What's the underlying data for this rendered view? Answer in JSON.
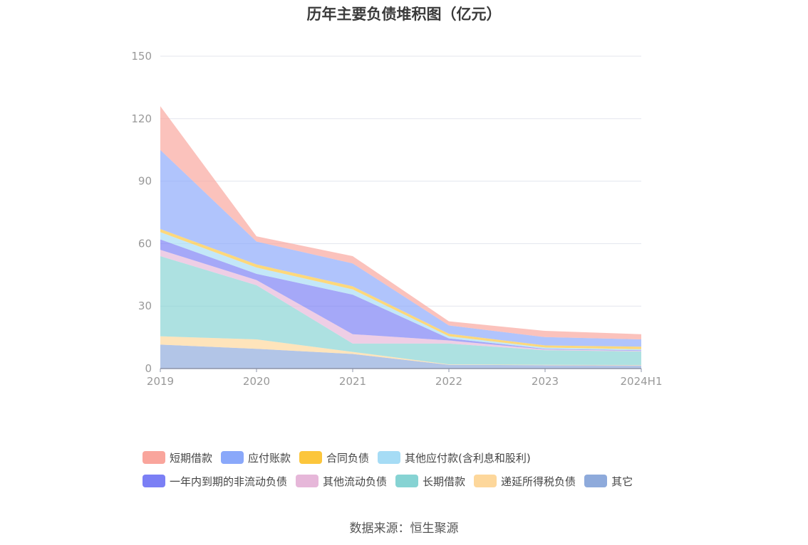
{
  "chart_data": {
    "type": "area",
    "stacked": true,
    "title": "历年主要负债堆积图（亿元）",
    "categories": [
      "2019",
      "2020",
      "2021",
      "2022",
      "2023",
      "2024H1"
    ],
    "ylim": [
      0,
      150
    ],
    "yticks": [
      "0",
      "30",
      "60",
      "90",
      "120",
      "150"
    ],
    "grid": true,
    "legend_position": "bottom",
    "series": [
      {
        "name": "其它",
        "color": "#8eaadb",
        "values": [
          11.5,
          9.5,
          7.0,
          1.8,
          1.6,
          1.5
        ]
      },
      {
        "name": "递延所得税负债",
        "color": "#fdd79b",
        "values": [
          4.0,
          4.5,
          1.0,
          0.2,
          0.2,
          0.2
        ]
      },
      {
        "name": "长期借款",
        "color": "#86d3d3",
        "values": [
          38.5,
          26.0,
          4.0,
          10.0,
          7.0,
          6.5
        ]
      },
      {
        "name": "其他流动负债",
        "color": "#e6b7d9",
        "values": [
          3.0,
          2.5,
          4.5,
          1.5,
          0.4,
          0.3
        ]
      },
      {
        "name": "一年内到期的非流动负债",
        "color": "#7b7ff5",
        "values": [
          5.0,
          3.0,
          19.0,
          1.0,
          0.3,
          0.3
        ]
      },
      {
        "name": "其他应付款(含利息和股利)",
        "color": "#a6dcf5",
        "values": [
          3.5,
          3.0,
          2.5,
          1.0,
          0.6,
          0.5
        ]
      },
      {
        "name": "合同负债",
        "color": "#fcc63c",
        "values": [
          1.5,
          1.5,
          1.5,
          1.2,
          1.0,
          1.2
        ]
      },
      {
        "name": "应付账款",
        "color": "#8aa8fa",
        "values": [
          38.0,
          11.0,
          11.0,
          4.0,
          4.0,
          3.5
        ]
      },
      {
        "name": "短期借款",
        "color": "#f9a59c",
        "values": [
          21.0,
          2.5,
          3.5,
          2.0,
          3.0,
          2.5
        ]
      }
    ]
  },
  "legend": {
    "rows": [
      [
        {
          "label": "短期借款",
          "color": "#f9a59c"
        },
        {
          "label": "应付账款",
          "color": "#8aa8fa"
        },
        {
          "label": "合同负债",
          "color": "#fcc63c"
        },
        {
          "label": "其他应付款(含利息和股利)",
          "color": "#a6dcf5"
        }
      ],
      [
        {
          "label": "一年内到期的非流动负债",
          "color": "#7b7ff5"
        },
        {
          "label": "其他流动负债",
          "color": "#e6b7d9"
        },
        {
          "label": "长期借款",
          "color": "#86d3d3"
        },
        {
          "label": "递延所得税负债",
          "color": "#fdd79b"
        },
        {
          "label": "其它",
          "color": "#8eaadb"
        }
      ]
    ]
  },
  "source": "数据来源：恒生聚源"
}
